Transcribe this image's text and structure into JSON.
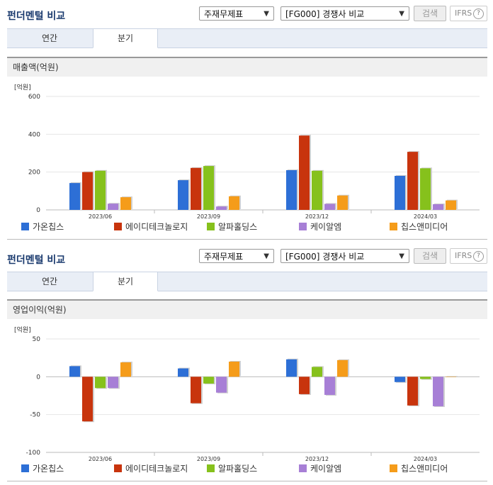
{
  "header": {
    "title": "펀더멘털 비교",
    "dropdown1": "주재무제표",
    "dropdown2": "[FG000] 경쟁사 비교",
    "search_label": "검색",
    "ifrs_label": "IFRS",
    "help_glyph": "?"
  },
  "tabs": [
    "연간",
    "분기"
  ],
  "active_tab": "분기",
  "colors": [
    "#2d6fd6",
    "#c8340d",
    "#86c11c",
    "#a77fd6",
    "#f59c1a"
  ],
  "charts": [
    {
      "section_title": "매출액(억원)",
      "chart_data": {
        "type": "bar",
        "unit_label": "[억원]",
        "categories": [
          "2023/06",
          "2023/09",
          "2023/12",
          "2024/03"
        ],
        "ylim": [
          0,
          600
        ],
        "yticks": [
          0,
          200,
          400,
          600
        ],
        "series": [
          {
            "name": "가온칩스",
            "values": [
              142,
              157,
              210,
              180
            ]
          },
          {
            "name": "에이디테크놀로지",
            "values": [
              200,
              222,
              393,
              307
            ]
          },
          {
            "name": "알파홀딩스",
            "values": [
              207,
              232,
              207,
              220
            ]
          },
          {
            "name": "케이알엠",
            "values": [
              33,
              18,
              32,
              30
            ]
          },
          {
            "name": "칩스앤미디어",
            "values": [
              67,
              72,
              76,
              50
            ]
          }
        ]
      }
    },
    {
      "section_title": "영업이익(억원)",
      "chart_data": {
        "type": "bar",
        "unit_label": "[억원]",
        "categories": [
          "2023/06",
          "2023/09",
          "2023/12",
          "2024/03"
        ],
        "ylim": [
          -100,
          50
        ],
        "yticks": [
          -100,
          -50,
          0,
          50
        ],
        "series": [
          {
            "name": "가온칩스",
            "values": [
              14,
              11,
              23,
              -7
            ]
          },
          {
            "name": "에이디테크놀로지",
            "values": [
              -59,
              -35,
              -23,
              -38
            ]
          },
          {
            "name": "알파홀딩스",
            "values": [
              -15,
              -9,
              13,
              -3
            ]
          },
          {
            "name": "케이알엠",
            "values": [
              -15,
              -21,
              -24,
              -39
            ]
          },
          {
            "name": "칩스앤미디어",
            "values": [
              19,
              20,
              22,
              0
            ]
          }
        ]
      }
    }
  ]
}
